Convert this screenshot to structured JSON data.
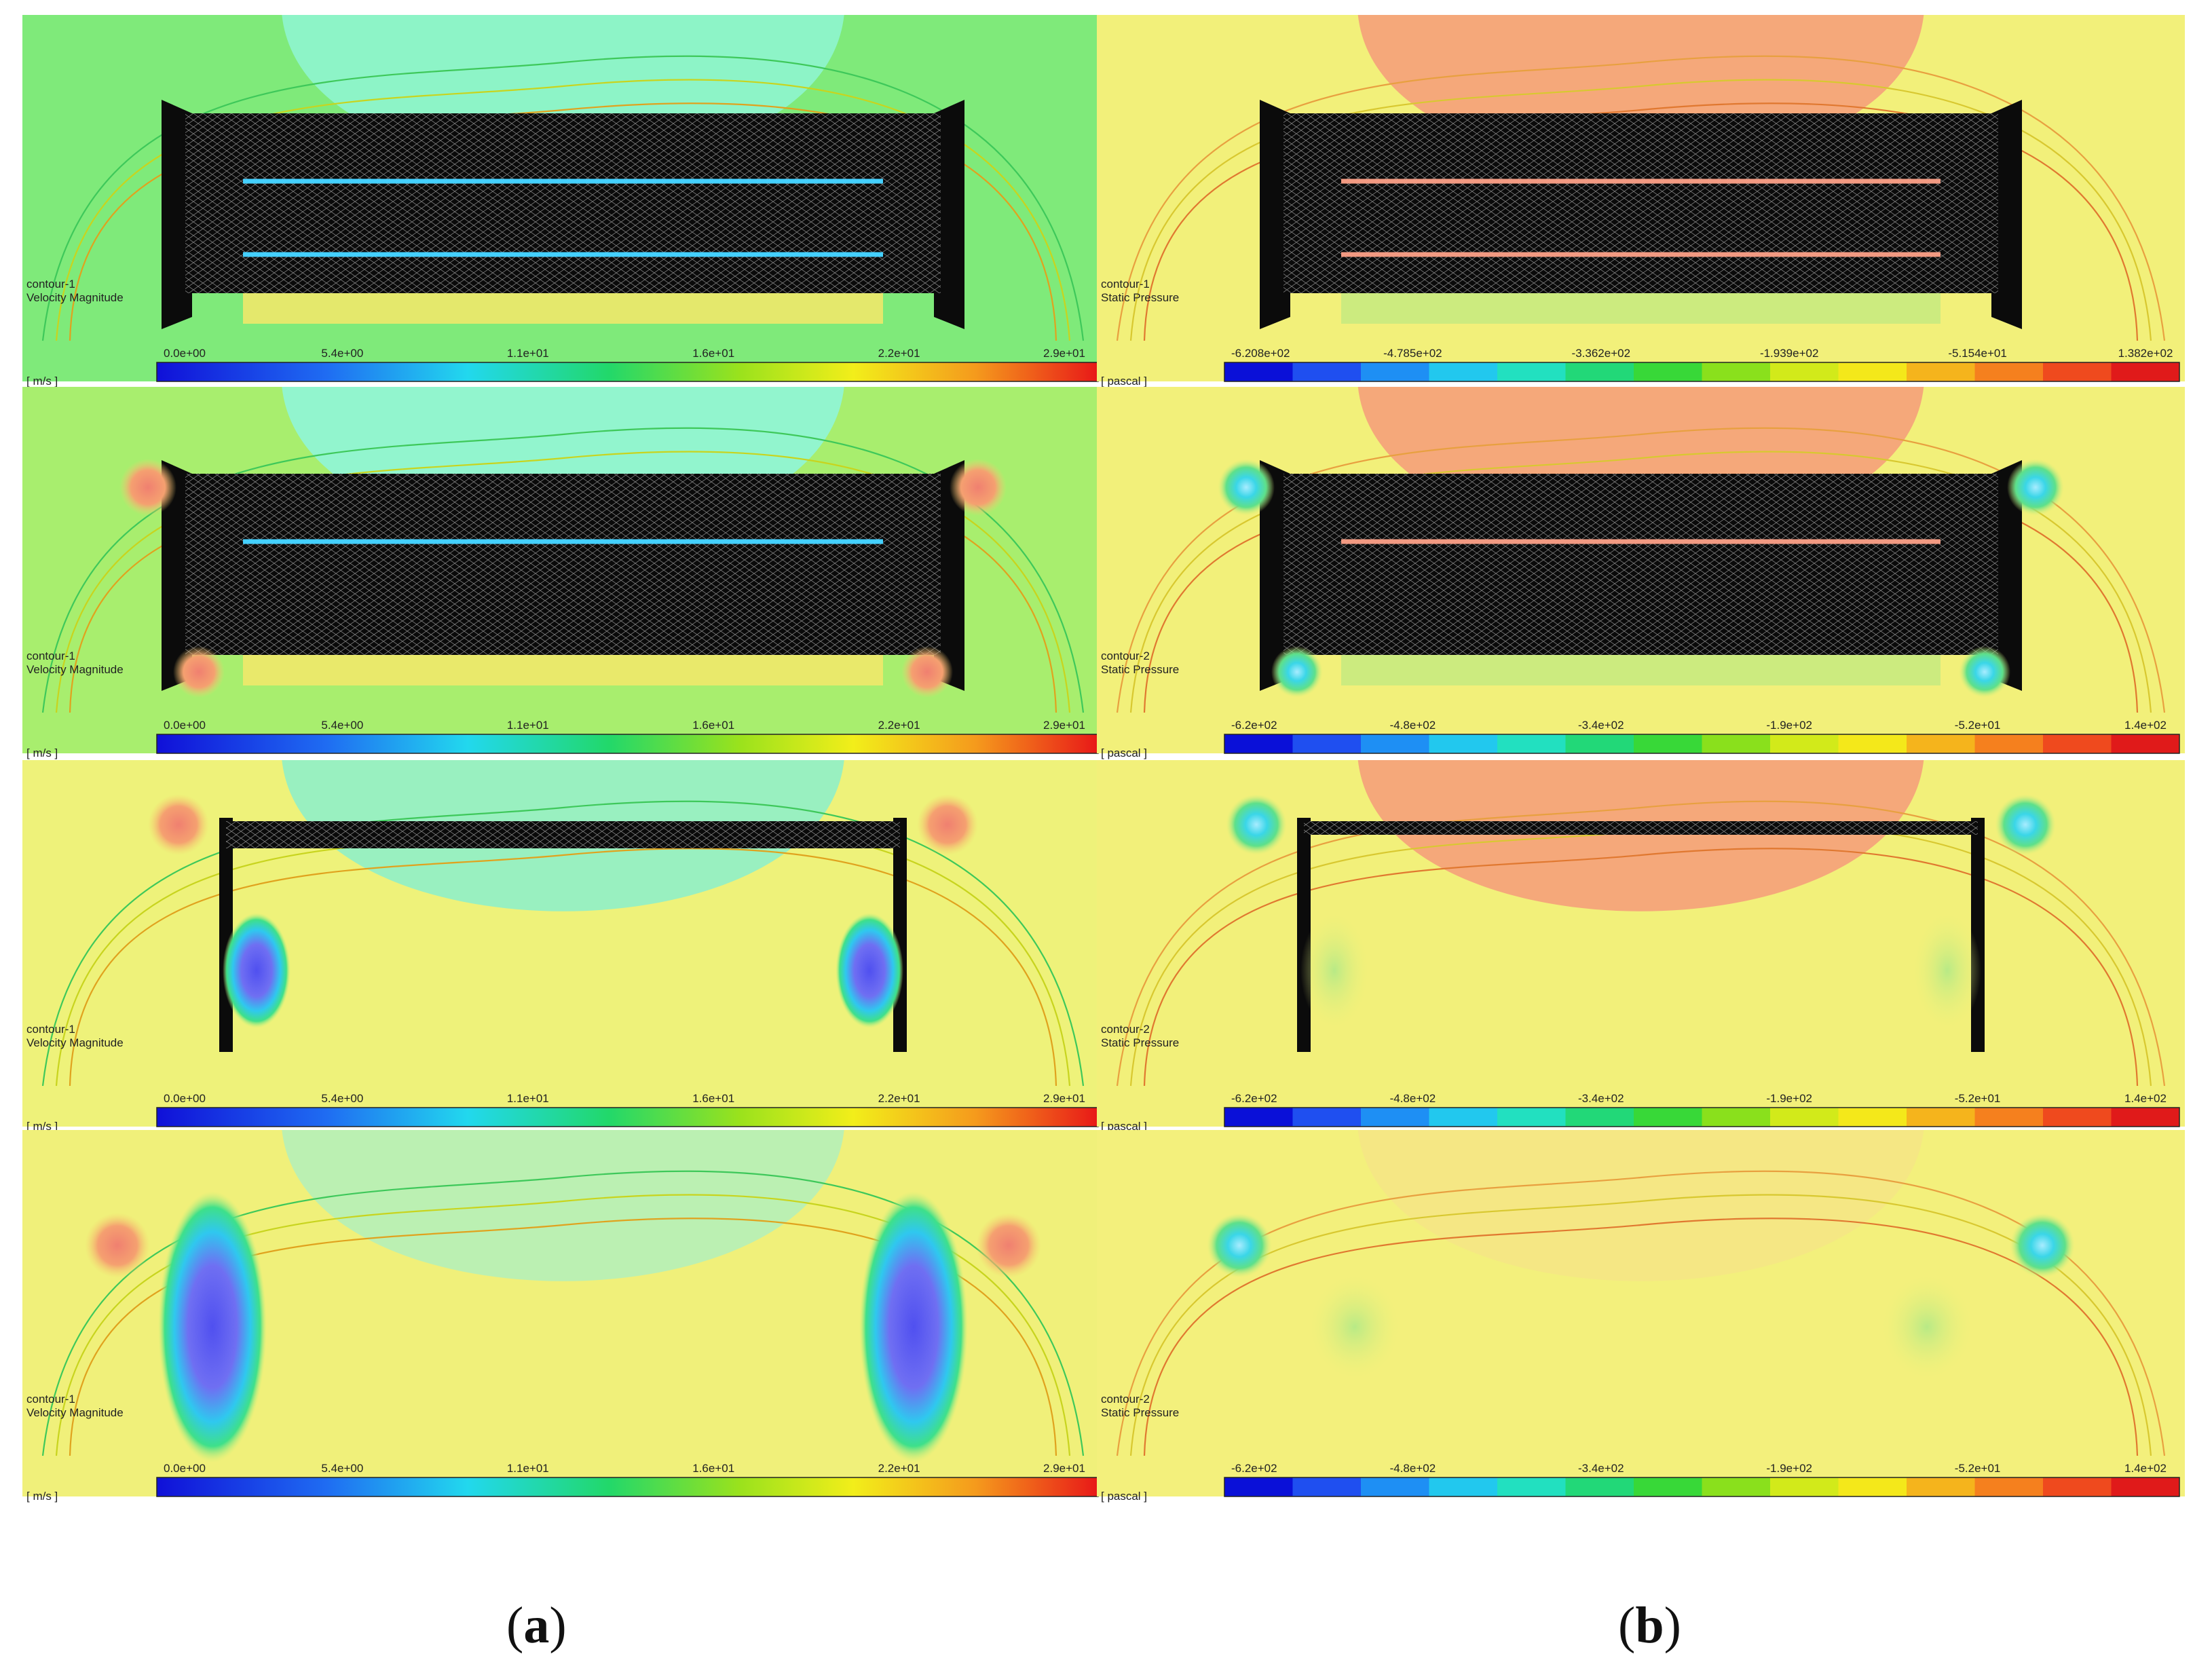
{
  "figure": {
    "columns": [
      {
        "caption_letter": "a"
      },
      {
        "caption_letter": "b"
      }
    ],
    "panels": [
      {
        "id": "a1",
        "contour": "contour-1",
        "variable": "Velocity Magnitude",
        "unit": "[ m/s ]",
        "ticks": [
          "0.0e+00",
          "5.4e+00",
          "1.1e+01",
          "1.6e+01",
          "2.2e+01",
          "2.9e+01"
        ],
        "colormap": "continuous",
        "mesh_rows": 3,
        "flow_lines": 2,
        "flow_line_color": "#44d0ff",
        "bg": "#7fea7a",
        "top_region_color": "#8ff5cf"
      },
      {
        "id": "b1",
        "contour": "contour-1",
        "variable": "Static Pressure",
        "unit": "[ pascal ]",
        "ticks": [
          "-6.208e+02",
          "-4.785e+02",
          "-3.362e+02",
          "-1.939e+02",
          "-5.154e+01",
          "1.382e+02"
        ],
        "colormap": "banded",
        "mesh_rows": 3,
        "flow_lines": 2,
        "flow_line_color": "#f29a82",
        "bg": "#f2f07a",
        "top_region_color": "#f5a07a"
      },
      {
        "id": "a2",
        "contour": "contour-1",
        "variable": "Velocity Magnitude",
        "unit": "[ m/s ]",
        "ticks": [
          "0.0e+00",
          "5.4e+00",
          "1.1e+01",
          "1.6e+01",
          "2.2e+01",
          "2.9e+01"
        ],
        "colormap": "continuous",
        "mesh_rows": 2,
        "flow_lines": 1,
        "flow_line_color": "#44d0ff",
        "bg": "#a8ee6e",
        "top_region_color": "#8ff5d8"
      },
      {
        "id": "b2",
        "contour": "contour-2",
        "variable": "Static Pressure",
        "unit": "[ pascal ]",
        "ticks": [
          "-6.2e+02",
          "-4.8e+02",
          "-3.4e+02",
          "-1.9e+02",
          "-5.2e+01",
          "1.4e+02"
        ],
        "colormap": "banded",
        "mesh_rows": 2,
        "flow_lines": 1,
        "flow_line_color": "#f29a82",
        "bg": "#f2f07a",
        "top_region_color": "#f5a07a"
      },
      {
        "id": "a3",
        "contour": "contour-1",
        "variable": "Velocity Magnitude",
        "unit": "[ m/s ]",
        "ticks": [
          "0.0e+00",
          "5.4e+00",
          "1.1e+01",
          "1.6e+01",
          "2.2e+01",
          "2.9e+01"
        ],
        "colormap": "continuous",
        "mesh_rows": 1,
        "flow_lines": 0,
        "flow_line_color": "#44d0ff",
        "bg": "#eef27a",
        "top_region_color": "#8ff0c8"
      },
      {
        "id": "b3",
        "contour": "contour-2",
        "variable": "Static Pressure",
        "unit": "[ pascal ]",
        "ticks": [
          "-6.2e+02",
          "-4.8e+02",
          "-3.4e+02",
          "-1.9e+02",
          "-5.2e+01",
          "1.4e+02"
        ],
        "colormap": "banded",
        "mesh_rows": 0,
        "flow_lines": 0,
        "flow_line_color": "#f29a82",
        "bg": "#f2f07a",
        "top_region_color": "#f5a07a"
      },
      {
        "id": "a4",
        "contour": "contour-1",
        "variable": "Velocity Magnitude",
        "unit": "[ m/s ]",
        "ticks": [
          "0.0e+00",
          "5.4e+00",
          "1.1e+01",
          "1.6e+01",
          "2.2e+01",
          "2.9e+01"
        ],
        "colormap": "continuous",
        "mesh_rows": 0,
        "flow_lines": 0,
        "flow_line_color": "#44d0ff",
        "bg": "#f0f07a",
        "top_region_color": "#8ff0e0"
      },
      {
        "id": "b4",
        "contour": "contour-2",
        "variable": "Static Pressure",
        "unit": "[ pascal ]",
        "ticks": [
          "-6.2e+02",
          "-4.8e+02",
          "-3.4e+02",
          "-1.9e+02",
          "-5.2e+01",
          "1.4e+02"
        ],
        "colormap": "banded",
        "mesh_rows": 0,
        "flow_lines": 0,
        "flow_line_color": "#f29a82",
        "bg": "#f3f07c",
        "top_region_color": "#f5e08a"
      }
    ]
  }
}
